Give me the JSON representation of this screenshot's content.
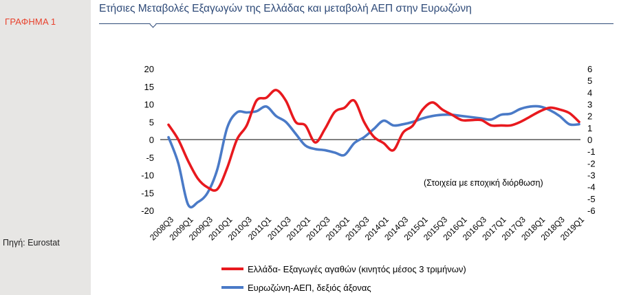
{
  "sidebar": {
    "graph_label": "ΓΡΑΦΗΜΑ 1",
    "source": "Πηγή: Eurostat"
  },
  "colors": {
    "greece_exports": "#e8191e",
    "eurozone_gdp": "#4a7ac7",
    "title": "#2e4a78",
    "graph_label": "#e8412c",
    "sidebar_bg": "#e7e6e4"
  },
  "chart_data": {
    "type": "line",
    "title": "Ετήσιες Μεταβολές Εξαγωγών της Ελλάδας και μεταβολή ΑΕΠ στην Ευρωζώνη",
    "annotation": "(Στοιχεία με εποχική διόρθωση)",
    "x": [
      "2008Q3",
      "2008Q4",
      "2009Q1",
      "2009Q2",
      "2009Q3",
      "2009Q4",
      "2010Q1",
      "2010Q2",
      "2010Q3",
      "2010Q4",
      "2011Q1",
      "2011Q2",
      "2011Q3",
      "2011Q4",
      "2012Q1",
      "2012Q2",
      "2012Q3",
      "2012Q4",
      "2013Q1",
      "2013Q2",
      "2013Q3",
      "2013Q4",
      "2014Q1",
      "2014Q2",
      "2014Q3",
      "2014Q4",
      "2015Q1",
      "2015Q2",
      "2015Q3",
      "2015Q4",
      "2016Q1",
      "2016Q2",
      "2016Q3",
      "2016Q4",
      "2017Q1",
      "2017Q2",
      "2017Q3",
      "2017Q4",
      "2018Q1",
      "2018Q2",
      "2018Q3",
      "2018Q4",
      "2019Q1"
    ],
    "x_tick_labels": [
      "2008Q3",
      "2009Q1",
      "2009Q3",
      "2010Q1",
      "2010Q3",
      "2011Q1",
      "2011Q3",
      "2012Q1",
      "2012Q3",
      "2013Q1",
      "2013Q3",
      "2014Q1",
      "2014Q3",
      "2015Q1",
      "2015Q3",
      "2016Q1",
      "2016Q3",
      "2017Q1",
      "2017Q3",
      "2018Q1",
      "2018Q3",
      "2019Q1"
    ],
    "y_left": {
      "ylim": [
        -20,
        20
      ],
      "ticks": [
        "20",
        "15",
        "10",
        "5",
        "0",
        "-5",
        "-10",
        "-15",
        "-20"
      ]
    },
    "y_right": {
      "ylim": [
        -6,
        6
      ],
      "ticks": [
        "6",
        "5",
        "4",
        "3",
        "2",
        "1",
        "0",
        "-1",
        "-2",
        "-3",
        "-4",
        "-5",
        "-6"
      ]
    },
    "grid": false,
    "legend_position": "bottom",
    "series": [
      {
        "name": "Ελλάδα- Εξαγωγές αγαθών (κινητός μέσος 3 τριμήνων)",
        "axis": "left",
        "values": [
          4.2,
          0,
          -6,
          -11,
          -13.5,
          -14,
          -8,
          0,
          4,
          11,
          11.8,
          14,
          11,
          5,
          4,
          -0.8,
          3,
          7.8,
          9,
          11,
          5,
          0.8,
          -1,
          -3,
          2,
          4,
          8.5,
          10.5,
          8.5,
          7,
          5.5,
          5.5,
          5.5,
          4,
          4,
          4,
          5,
          6.5,
          8,
          9,
          8.5,
          7.5,
          5
        ]
      },
      {
        "name": "Ευρωζώνη-ΑΕΠ, δεξιός άξονας",
        "axis": "right",
        "values": [
          0.2,
          -2,
          -5.5,
          -5.3,
          -4.5,
          -2.5,
          1,
          2.3,
          2.3,
          2.4,
          2.8,
          2,
          1.5,
          0.5,
          -0.5,
          -0.8,
          -0.9,
          -1.1,
          -1.3,
          -0.3,
          0.2,
          0.9,
          1.6,
          1.2,
          1.3,
          1.5,
          1.8,
          2,
          2.1,
          2.1,
          2,
          1.9,
          1.8,
          1.7,
          2.1,
          2.2,
          2.6,
          2.8,
          2.8,
          2.5,
          2,
          1.3,
          1.3
        ]
      }
    ]
  }
}
